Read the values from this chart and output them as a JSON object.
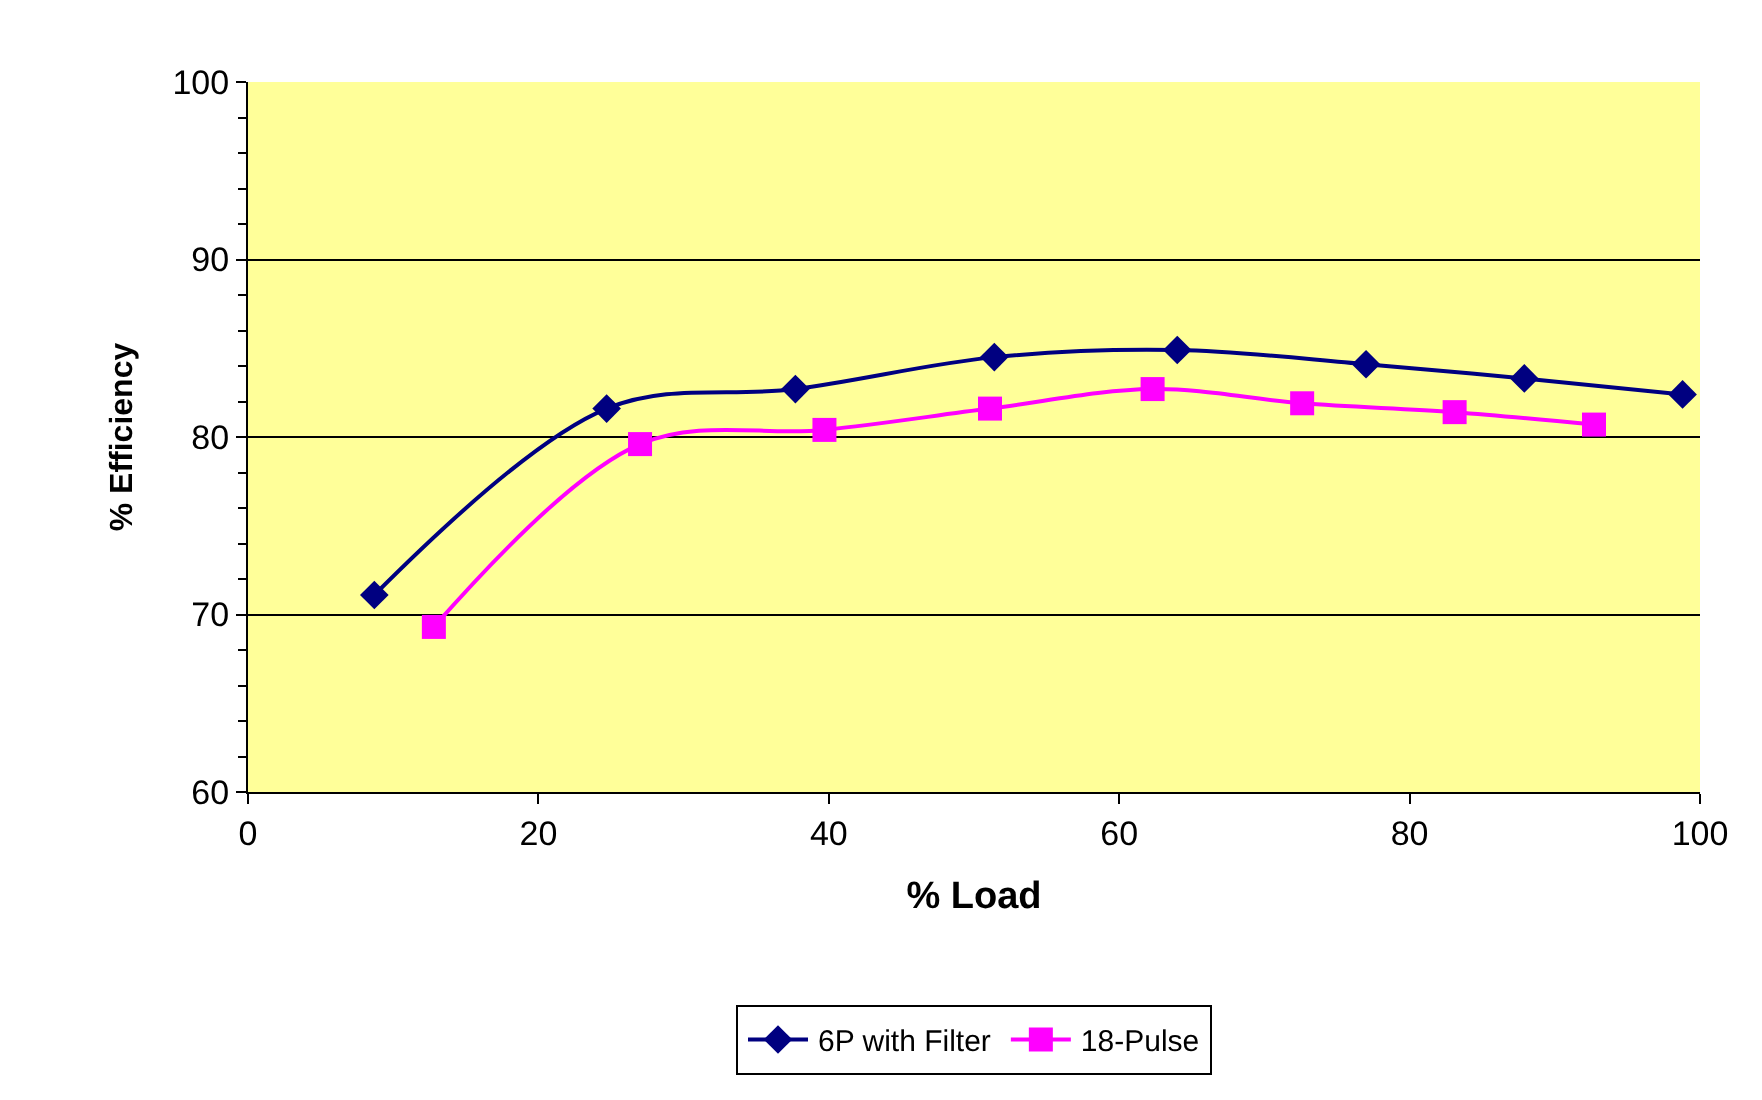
{
  "chart_data": {
    "type": "line",
    "xlabel": "% Load",
    "ylabel": "% Efficiency",
    "series": [
      {
        "name": "6P with Filter",
        "color": "#000080",
        "marker": "diamond",
        "x": [
          8.7,
          24.7,
          37.7,
          51.4,
          64.0,
          77.0,
          87.9,
          98.8
        ],
        "values": [
          71.1,
          81.6,
          82.7,
          84.5,
          84.9,
          84.1,
          83.3,
          82.4
        ]
      },
      {
        "name": "18-Pulse",
        "color": "#ff00ff",
        "marker": "square",
        "x": [
          12.8,
          27.0,
          39.7,
          51.1,
          62.3,
          72.6,
          83.1,
          92.7
        ],
        "values": [
          69.3,
          79.6,
          80.4,
          81.6,
          82.7,
          81.9,
          81.4,
          80.7
        ]
      }
    ],
    "xlim": [
      0,
      100
    ],
    "xticks": [
      0,
      20,
      40,
      60,
      80,
      100
    ],
    "ylim": [
      60,
      100
    ],
    "yticks": [
      60,
      70,
      80,
      90,
      100
    ],
    "grid": "y",
    "legend": "bottom"
  }
}
